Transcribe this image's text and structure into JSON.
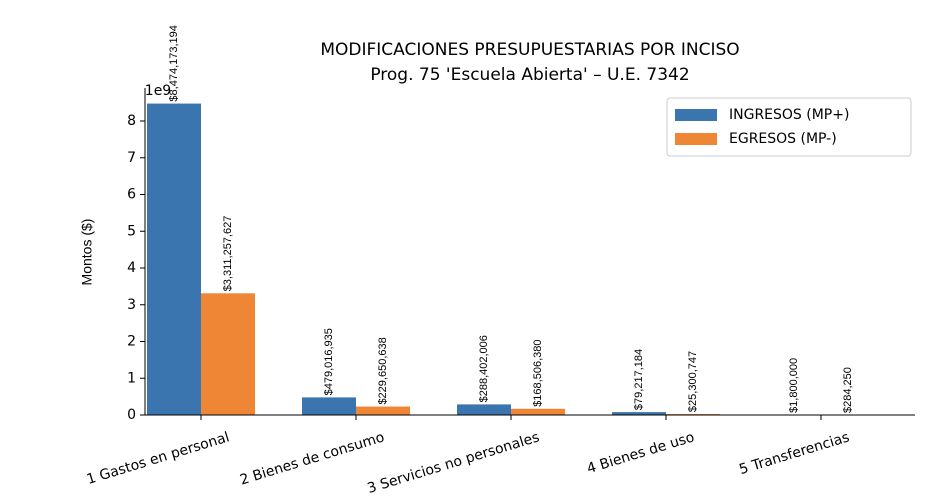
{
  "chart_data": {
    "type": "bar",
    "title": "MODIFICACIONES PRESUPUESTARIAS POR INCISO",
    "subtitle": "Prog. 75 'Escuela Abierta' – U.E. 7342",
    "y_label": "Montos ($)",
    "y_offset_label": "1e9",
    "categories": [
      "1 Gastos en personal",
      "2 Bienes de consumo",
      "3 Servicios no personales",
      "4 Bienes de uso",
      "5 Transferencias"
    ],
    "series": [
      {
        "name": "INGRESOS (MP+)",
        "color": "#3b75af",
        "values": [
          8474173194,
          479016935,
          288402006,
          79217184,
          1800000
        ],
        "value_labels": [
          "$8,474,173,194",
          "$479,016,935",
          "$288,402,006",
          "$79,217,184",
          "$1,800,000"
        ]
      },
      {
        "name": "EGRESOS (MP-)",
        "color": "#ef8636",
        "values": [
          3311257627,
          229650638,
          168506380,
          25300747,
          284250
        ],
        "value_labels": [
          "$3,311,257,627",
          "$229,650,638",
          "$168,506,380",
          "$25,300,747",
          "$284,250"
        ]
      }
    ],
    "ylim": [
      0,
      8898000000
    ],
    "yticks": [
      0,
      {
        "value": 1000000000,
        "label": "1"
      },
      {
        "value": 2000000000,
        "label": "2"
      },
      {
        "value": 3000000000,
        "label": "3"
      },
      {
        "value": 4000000000,
        "label": "4"
      },
      {
        "value": 5000000000,
        "label": "5"
      },
      {
        "value": 6000000000,
        "label": "6"
      },
      {
        "value": 7000000000,
        "label": "7"
      },
      {
        "value": 8000000000,
        "label": "8"
      }
    ],
    "legend": "upper right"
  }
}
